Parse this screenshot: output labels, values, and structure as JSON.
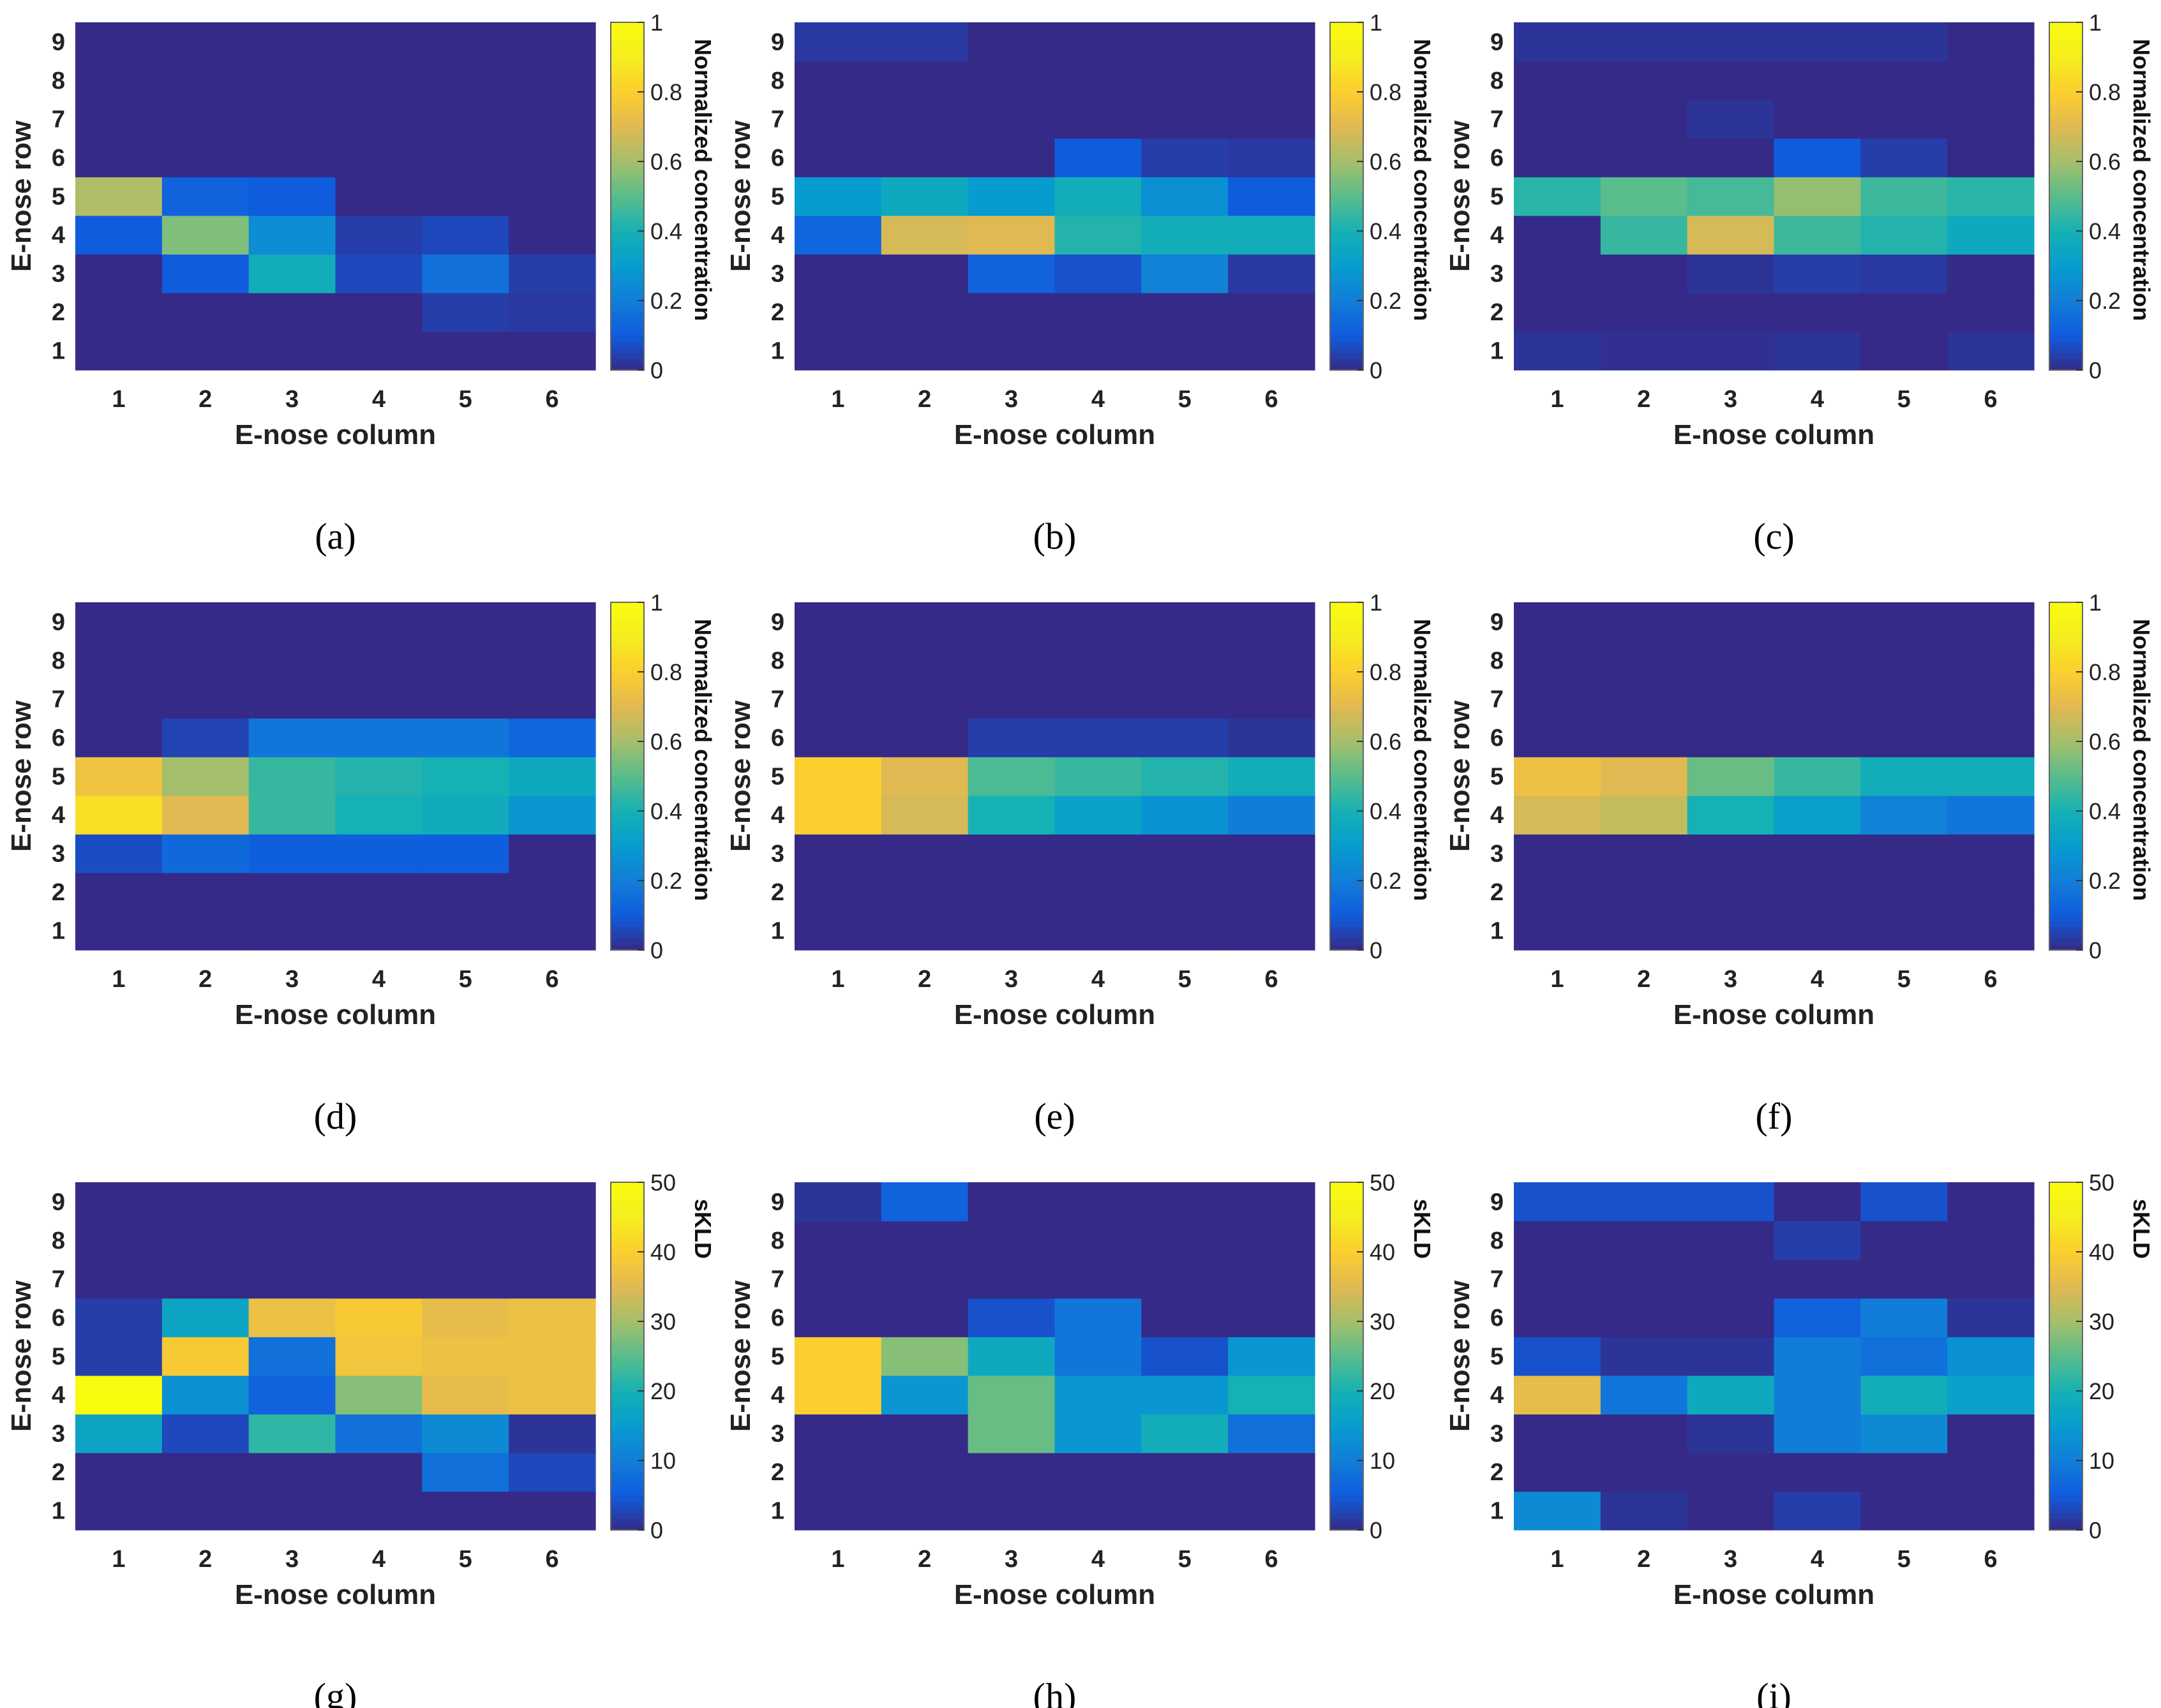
{
  "chart_data": [
    {
      "type": "heatmap",
      "panel": "(a)",
      "caption": "(a)",
      "xlabel": "E-nose column",
      "ylabel": "E-nose row",
      "colorbar": {
        "label": "Normalized concentration",
        "min": 0,
        "max": 1,
        "ticks": [
          "0",
          "0.2",
          "0.4",
          "0.6",
          "0.8",
          "1"
        ]
      },
      "x": [
        "1",
        "2",
        "3",
        "4",
        "5",
        "6"
      ],
      "y": [
        "1",
        "2",
        "3",
        "4",
        "5",
        "6",
        "7",
        "8",
        "9"
      ],
      "z": [
        [
          0,
          0,
          0,
          0,
          0,
          0
        ],
        [
          0,
          0,
          0,
          0,
          0.04,
          0.03
        ],
        [
          0,
          0.1,
          0.38,
          0.06,
          0.16,
          0.04
        ],
        [
          0.1,
          0.55,
          0.25,
          0.04,
          0.06,
          0
        ],
        [
          0.62,
          0.12,
          0.1,
          0,
          0,
          0
        ],
        [
          0,
          0,
          0,
          0,
          0,
          0
        ],
        [
          0,
          0,
          0,
          0,
          0,
          0
        ],
        [
          0,
          0,
          0,
          0,
          0,
          0
        ],
        [
          0,
          0,
          0,
          0,
          0,
          0
        ]
      ]
    },
    {
      "type": "heatmap",
      "panel": "(b)",
      "caption": "(b)",
      "xlabel": "E-nose column",
      "ylabel": "E-nose row",
      "colorbar": {
        "label": "Normalized concentration",
        "min": 0,
        "max": 1,
        "ticks": [
          "0",
          "0.2",
          "0.4",
          "0.6",
          "0.8",
          "1"
        ]
      },
      "x": [
        "1",
        "2",
        "3",
        "4",
        "5",
        "6"
      ],
      "y": [
        "1",
        "2",
        "3",
        "4",
        "5",
        "6",
        "7",
        "8",
        "9"
      ],
      "z": [
        [
          0,
          0,
          0,
          0,
          0,
          0
        ],
        [
          0,
          0,
          0,
          0,
          0,
          0
        ],
        [
          0,
          0,
          0.12,
          0.08,
          0.22,
          0.03
        ],
        [
          0.13,
          0.68,
          0.7,
          0.42,
          0.38,
          0.38
        ],
        [
          0.3,
          0.36,
          0.3,
          0.38,
          0.26,
          0.1
        ],
        [
          0,
          0,
          0,
          0.1,
          0.04,
          0.03
        ],
        [
          0,
          0,
          0,
          0,
          0,
          0
        ],
        [
          0,
          0,
          0,
          0,
          0,
          0
        ],
        [
          0.03,
          0.03,
          0,
          0,
          0,
          0
        ]
      ]
    },
    {
      "type": "heatmap",
      "panel": "(c)",
      "caption": "(c)",
      "xlabel": "E-nose column",
      "ylabel": "E-nose row",
      "colorbar": {
        "label": "Normalized concentration",
        "min": 0,
        "max": 1,
        "ticks": [
          "0",
          "0.2",
          "0.4",
          "0.6",
          "0.8",
          "1"
        ]
      },
      "x": [
        "1",
        "2",
        "3",
        "4",
        "5",
        "6"
      ],
      "y": [
        "1",
        "2",
        "3",
        "4",
        "5",
        "6",
        "7",
        "8",
        "9"
      ],
      "z": [
        [
          0.02,
          0.01,
          0.01,
          0.02,
          0,
          0.02
        ],
        [
          0,
          0,
          0,
          0,
          0,
          0
        ],
        [
          0,
          0,
          0.02,
          0.04,
          0.03,
          0
        ],
        [
          0,
          0.45,
          0.68,
          0.46,
          0.42,
          0.36
        ],
        [
          0.43,
          0.5,
          0.47,
          0.58,
          0.46,
          0.43
        ],
        [
          0,
          0,
          0,
          0.1,
          0.04,
          0
        ],
        [
          0,
          0,
          0.02,
          0,
          0,
          0
        ],
        [
          0,
          0,
          0,
          0,
          0,
          0
        ],
        [
          0.02,
          0.02,
          0.02,
          0.02,
          0.02,
          0
        ]
      ]
    },
    {
      "type": "heatmap",
      "panel": "(d)",
      "caption": "(d)",
      "xlabel": "E-nose column",
      "ylabel": "E-nose row",
      "colorbar": {
        "label": "Normalized concentration",
        "min": 0,
        "max": 1,
        "ticks": [
          "0",
          "0.2",
          "0.4",
          "0.6",
          "0.8",
          "1"
        ]
      },
      "x": [
        "1",
        "2",
        "3",
        "4",
        "5",
        "6"
      ],
      "y": [
        "1",
        "2",
        "3",
        "4",
        "5",
        "6",
        "7",
        "8",
        "9"
      ],
      "z": [
        [
          0,
          0,
          0,
          0,
          0,
          0
        ],
        [
          0,
          0,
          0,
          0,
          0,
          0
        ],
        [
          0.07,
          0.14,
          0.11,
          0.11,
          0.11,
          0
        ],
        [
          0.85,
          0.7,
          0.45,
          0.4,
          0.37,
          0.28
        ],
        [
          0.75,
          0.6,
          0.45,
          0.42,
          0.4,
          0.36
        ],
        [
          0,
          0.05,
          0.18,
          0.18,
          0.18,
          0.13
        ],
        [
          0,
          0,
          0,
          0,
          0,
          0
        ],
        [
          0,
          0,
          0,
          0,
          0,
          0
        ],
        [
          0,
          0,
          0,
          0,
          0,
          0
        ]
      ]
    },
    {
      "type": "heatmap",
      "panel": "(e)",
      "caption": "(e)",
      "xlabel": "E-nose column",
      "ylabel": "E-nose row",
      "colorbar": {
        "label": "Normalized concentration",
        "min": 0,
        "max": 1,
        "ticks": [
          "0",
          "0.2",
          "0.4",
          "0.6",
          "0.8",
          "1"
        ]
      },
      "x": [
        "1",
        "2",
        "3",
        "4",
        "5",
        "6"
      ],
      "y": [
        "1",
        "2",
        "3",
        "4",
        "5",
        "6",
        "7",
        "8",
        "9"
      ],
      "z": [
        [
          0,
          0,
          0,
          0,
          0,
          0
        ],
        [
          0,
          0,
          0,
          0,
          0,
          0
        ],
        [
          0,
          0,
          0,
          0,
          0,
          0
        ],
        [
          0.8,
          0.68,
          0.4,
          0.33,
          0.27,
          0.2
        ],
        [
          0.8,
          0.7,
          0.48,
          0.45,
          0.42,
          0.38
        ],
        [
          0,
          0,
          0.04,
          0.04,
          0.04,
          0.02
        ],
        [
          0,
          0,
          0,
          0,
          0,
          0
        ],
        [
          0,
          0,
          0,
          0,
          0,
          0
        ],
        [
          0,
          0,
          0,
          0,
          0,
          0
        ]
      ]
    },
    {
      "type": "heatmap",
      "panel": "(f)",
      "caption": "(f)",
      "xlabel": "E-nose column",
      "ylabel": "E-nose row",
      "colorbar": {
        "label": "Normalized concentration",
        "min": 0,
        "max": 1,
        "ticks": [
          "0",
          "0.2",
          "0.4",
          "0.6",
          "0.8",
          "1"
        ]
      },
      "x": [
        "1",
        "2",
        "3",
        "4",
        "5",
        "6"
      ],
      "y": [
        "1",
        "2",
        "3",
        "4",
        "5",
        "6",
        "7",
        "8",
        "9"
      ],
      "z": [
        [
          0,
          0,
          0,
          0,
          0,
          0
        ],
        [
          0,
          0,
          0,
          0,
          0,
          0
        ],
        [
          0,
          0,
          0,
          0,
          0,
          0
        ],
        [
          0.68,
          0.65,
          0.4,
          0.32,
          0.22,
          0.18
        ],
        [
          0.74,
          0.7,
          0.52,
          0.45,
          0.38,
          0.38
        ],
        [
          0,
          0,
          0,
          0,
          0,
          0
        ],
        [
          0,
          0,
          0,
          0,
          0,
          0
        ],
        [
          0,
          0,
          0,
          0,
          0,
          0
        ],
        [
          0,
          0,
          0,
          0,
          0,
          0
        ]
      ]
    },
    {
      "type": "heatmap",
      "panel": "(g)",
      "caption": "(g)",
      "xlabel": "E-nose column",
      "ylabel": "E-nose row",
      "colorbar": {
        "label": "sKLD",
        "min": 0,
        "max": 50,
        "ticks": [
          "0",
          "10",
          "20",
          "30",
          "40",
          "50"
        ]
      },
      "x": [
        "1",
        "2",
        "3",
        "4",
        "5",
        "6"
      ],
      "y": [
        "1",
        "2",
        "3",
        "4",
        "5",
        "6",
        "7",
        "8",
        "9"
      ],
      "z": [
        [
          0,
          0,
          0,
          0,
          0,
          0
        ],
        [
          0,
          0,
          0,
          0,
          8,
          3
        ],
        [
          17,
          3,
          22,
          8,
          12,
          1
        ],
        [
          50,
          13,
          6,
          28,
          36,
          37
        ],
        [
          2,
          39,
          8,
          38,
          37,
          37
        ],
        [
          2,
          17,
          37,
          39,
          36,
          37
        ],
        [
          0,
          0,
          0,
          0,
          0,
          0
        ],
        [
          0,
          0,
          0,
          0,
          0,
          0
        ],
        [
          0,
          0,
          0,
          0,
          0,
          0
        ]
      ]
    },
    {
      "type": "heatmap",
      "panel": "(h)",
      "caption": "(h)",
      "xlabel": "E-nose column",
      "ylabel": "E-nose row",
      "colorbar": {
        "label": "sKLD",
        "min": 0,
        "max": 50,
        "ticks": [
          "0",
          "10",
          "20",
          "30",
          "40",
          "50"
        ]
      },
      "x": [
        "1",
        "2",
        "3",
        "4",
        "5",
        "6"
      ],
      "y": [
        "1",
        "2",
        "3",
        "4",
        "5",
        "6",
        "7",
        "8",
        "9"
      ],
      "z": [
        [
          0,
          0,
          0,
          0,
          0,
          0
        ],
        [
          0,
          0,
          0,
          0,
          0,
          0
        ],
        [
          0,
          0,
          26,
          14,
          19,
          8
        ],
        [
          40,
          14,
          26,
          14,
          14,
          20
        ],
        [
          40,
          28,
          18,
          9,
          4,
          14
        ],
        [
          0,
          0,
          4,
          9,
          0,
          0
        ],
        [
          0,
          0,
          0,
          0,
          0,
          0
        ],
        [
          0,
          0,
          0,
          0,
          0,
          0
        ],
        [
          1,
          6,
          0,
          0,
          0,
          0
        ]
      ]
    },
    {
      "type": "heatmap",
      "panel": "(i)",
      "caption": "(i)",
      "xlabel": "E-nose column",
      "ylabel": "E-nose row",
      "colorbar": {
        "label": "sKLD",
        "min": 0,
        "max": 50,
        "ticks": [
          "0",
          "10",
          "20",
          "30",
          "40",
          "50"
        ]
      },
      "x": [
        "1",
        "2",
        "3",
        "4",
        "5",
        "6"
      ],
      "y": [
        "1",
        "2",
        "3",
        "4",
        "5",
        "6",
        "7",
        "8",
        "9"
      ],
      "z": [
        [
          12,
          1,
          0,
          2,
          0,
          0
        ],
        [
          0,
          0,
          0,
          0,
          0,
          0
        ],
        [
          0,
          0,
          1,
          10,
          12,
          0
        ],
        [
          36,
          9,
          18,
          10,
          19,
          16
        ],
        [
          4,
          1,
          1,
          10,
          8,
          13
        ],
        [
          0,
          0,
          0,
          6,
          10,
          1
        ],
        [
          0,
          0,
          0,
          0,
          0,
          0
        ],
        [
          0,
          0,
          0,
          2,
          0,
          0
        ],
        [
          4,
          4,
          4,
          0,
          4,
          0
        ]
      ]
    }
  ]
}
